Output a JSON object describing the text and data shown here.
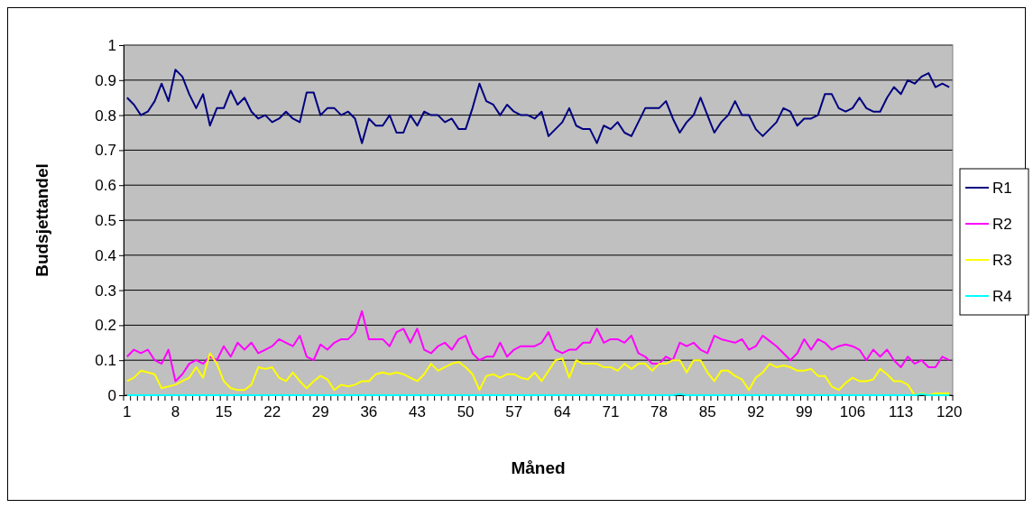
{
  "chart_data": {
    "type": "line",
    "xlabel": "Måned",
    "ylabel": "Budsjettandel",
    "categories": [
      "1",
      null,
      null,
      null,
      null,
      null,
      null,
      "8",
      null,
      null,
      null,
      null,
      null,
      null,
      "15",
      null,
      null,
      null,
      null,
      null,
      null,
      "22",
      null,
      null,
      null,
      null,
      null,
      null,
      "29",
      null,
      null,
      null,
      null,
      null,
      null,
      "36",
      null,
      null,
      null,
      null,
      null,
      null,
      "43",
      null,
      null,
      null,
      null,
      null,
      null,
      "50",
      null,
      null,
      null,
      null,
      null,
      null,
      "57",
      null,
      null,
      null,
      null,
      null,
      null,
      "64",
      null,
      null,
      null,
      null,
      null,
      null,
      "71",
      null,
      null,
      null,
      null,
      null,
      null,
      "78",
      null,
      null,
      null,
      null,
      null,
      null,
      "85",
      null,
      null,
      null,
      null,
      null,
      null,
      "92",
      null,
      null,
      null,
      null,
      null,
      null,
      "99",
      null,
      null,
      null,
      null,
      null,
      null,
      "106",
      null,
      null,
      null,
      null,
      null,
      null,
      "113",
      null,
      null,
      null,
      null,
      null,
      null,
      "120"
    ],
    "series": [
      {
        "name": "R1",
        "color": "#000080",
        "values": [
          0.85,
          0.83,
          0.8,
          0.81,
          0.84,
          0.89,
          0.84,
          0.93,
          0.91,
          0.86,
          0.82,
          0.86,
          0.77,
          0.82,
          0.82,
          0.87,
          0.83,
          0.85,
          0.81,
          0.79,
          0.8,
          0.78,
          0.79,
          0.81,
          0.79,
          0.78,
          0.865,
          0.865,
          0.8,
          0.82,
          0.82,
          0.8,
          0.81,
          0.79,
          0.72,
          0.79,
          0.77,
          0.77,
          0.8,
          0.75,
          0.75,
          0.8,
          0.77,
          0.81,
          0.8,
          0.8,
          0.78,
          0.79,
          0.76,
          0.76,
          0.82,
          0.89,
          0.84,
          0.83,
          0.8,
          0.83,
          0.81,
          0.8,
          0.8,
          0.79,
          0.81,
          0.74,
          0.76,
          0.78,
          0.82,
          0.77,
          0.76,
          0.76,
          0.72,
          0.77,
          0.76,
          0.78,
          0.75,
          0.74,
          0.78,
          0.82,
          0.82,
          0.82,
          0.84,
          0.79,
          0.75,
          0.78,
          0.8,
          0.85,
          0.8,
          0.75,
          0.78,
          0.8,
          0.84,
          0.8,
          0.8,
          0.76,
          0.74,
          0.76,
          0.78,
          0.82,
          0.81,
          0.77,
          0.79,
          0.79,
          0.8,
          0.86,
          0.86,
          0.82,
          0.81,
          0.82,
          0.85,
          0.82,
          0.81,
          0.81,
          0.85,
          0.88,
          0.86,
          0.9,
          0.89,
          0.91,
          0.92,
          0.88,
          0.89,
          0.88
        ]
      },
      {
        "name": "R2",
        "color": "#ff00ff",
        "values": [
          0.11,
          0.13,
          0.12,
          0.13,
          0.1,
          0.09,
          0.13,
          0.04,
          0.06,
          0.09,
          0.1,
          0.09,
          0.11,
          0.1,
          0.14,
          0.11,
          0.15,
          0.13,
          0.15,
          0.12,
          0.13,
          0.14,
          0.16,
          0.15,
          0.14,
          0.17,
          0.11,
          0.1,
          0.145,
          0.13,
          0.15,
          0.16,
          0.16,
          0.18,
          0.24,
          0.16,
          0.16,
          0.16,
          0.14,
          0.18,
          0.19,
          0.15,
          0.19,
          0.13,
          0.12,
          0.14,
          0.15,
          0.13,
          0.16,
          0.17,
          0.12,
          0.1,
          0.11,
          0.11,
          0.15,
          0.11,
          0.13,
          0.14,
          0.14,
          0.14,
          0.15,
          0.18,
          0.13,
          0.12,
          0.13,
          0.13,
          0.15,
          0.15,
          0.19,
          0.15,
          0.16,
          0.16,
          0.15,
          0.17,
          0.12,
          0.11,
          0.09,
          0.09,
          0.11,
          0.1,
          0.15,
          0.14,
          0.15,
          0.13,
          0.12,
          0.17,
          0.16,
          0.155,
          0.15,
          0.16,
          0.13,
          0.14,
          0.17,
          0.155,
          0.14,
          0.12,
          0.1,
          0.12,
          0.16,
          0.13,
          0.16,
          0.15,
          0.13,
          0.14,
          0.145,
          0.14,
          0.13,
          0.1,
          0.13,
          0.11,
          0.13,
          0.1,
          0.08,
          0.11,
          0.09,
          0.1,
          0.08,
          0.08,
          0.11,
          0.1
        ]
      },
      {
        "name": "R3",
        "color": "#ffff00",
        "values": [
          0.04,
          0.05,
          0.07,
          0.065,
          0.06,
          0.02,
          0.025,
          0.03,
          0.04,
          0.05,
          0.08,
          0.05,
          0.12,
          0.09,
          0.04,
          0.02,
          0.015,
          0.015,
          0.03,
          0.08,
          0.075,
          0.08,
          0.05,
          0.04,
          0.065,
          0.04,
          0.02,
          0.04,
          0.055,
          0.045,
          0.015,
          0.03,
          0.025,
          0.03,
          0.04,
          0.04,
          0.06,
          0.065,
          0.06,
          0.065,
          0.06,
          0.05,
          0.04,
          0.06,
          0.09,
          0.07,
          0.08,
          0.09,
          0.095,
          0.08,
          0.06,
          0.015,
          0.055,
          0.06,
          0.05,
          0.06,
          0.06,
          0.05,
          0.045,
          0.065,
          0.04,
          0.07,
          0.1,
          0.105,
          0.05,
          0.1,
          0.09,
          0.09,
          0.09,
          0.08,
          0.08,
          0.07,
          0.09,
          0.075,
          0.09,
          0.09,
          0.07,
          0.09,
          0.09,
          0.1,
          0.1,
          0.065,
          0.1,
          0.1,
          0.065,
          0.04,
          0.07,
          0.07,
          0.055,
          0.045,
          0.015,
          0.05,
          0.065,
          0.09,
          0.08,
          0.085,
          0.08,
          0.07,
          0.07,
          0.075,
          0.055,
          0.055,
          0.025,
          0.015,
          0.035,
          0.05,
          0.04,
          0.04,
          0.045,
          0.075,
          0.06,
          0.04,
          0.04,
          0.03,
          0,
          0.005,
          0,
          0.005,
          0.005,
          0.005
        ]
      },
      {
        "name": "R4",
        "color": "#00ffff",
        "values": [
          0,
          0,
          0,
          0,
          0,
          0,
          0,
          0,
          0,
          0,
          0,
          0,
          0,
          0,
          0,
          0,
          0,
          0,
          0,
          0,
          0,
          0,
          0,
          0,
          0,
          0,
          0,
          0,
          0,
          0,
          0,
          0,
          0,
          0,
          0,
          0,
          0,
          0,
          0,
          0,
          0,
          0,
          0,
          0,
          0,
          0,
          0,
          0,
          0,
          0,
          0,
          0,
          0,
          0,
          0,
          0,
          0,
          0,
          0,
          0,
          0,
          0,
          0,
          0,
          0,
          0,
          0,
          0,
          0,
          0,
          0,
          0,
          0,
          0,
          0,
          0,
          0,
          0,
          0,
          0,
          0.003,
          0,
          0,
          0,
          0,
          0,
          0,
          0,
          0,
          0,
          0,
          0,
          0,
          0,
          0,
          0,
          0,
          0,
          0,
          0,
          0,
          0,
          0,
          0,
          0,
          0,
          0,
          0,
          0,
          0,
          0,
          0,
          0,
          0,
          0,
          0.003,
          0,
          0,
          0,
          0
        ]
      }
    ],
    "ylim": [
      0,
      1
    ],
    "yticks": [
      0,
      0.1,
      0.2,
      0.3,
      0.4,
      0.5,
      0.6,
      0.7,
      0.8,
      0.9,
      1
    ],
    "grid": "y",
    "legend": "right",
    "marker": "none",
    "line_style": "solid"
  }
}
